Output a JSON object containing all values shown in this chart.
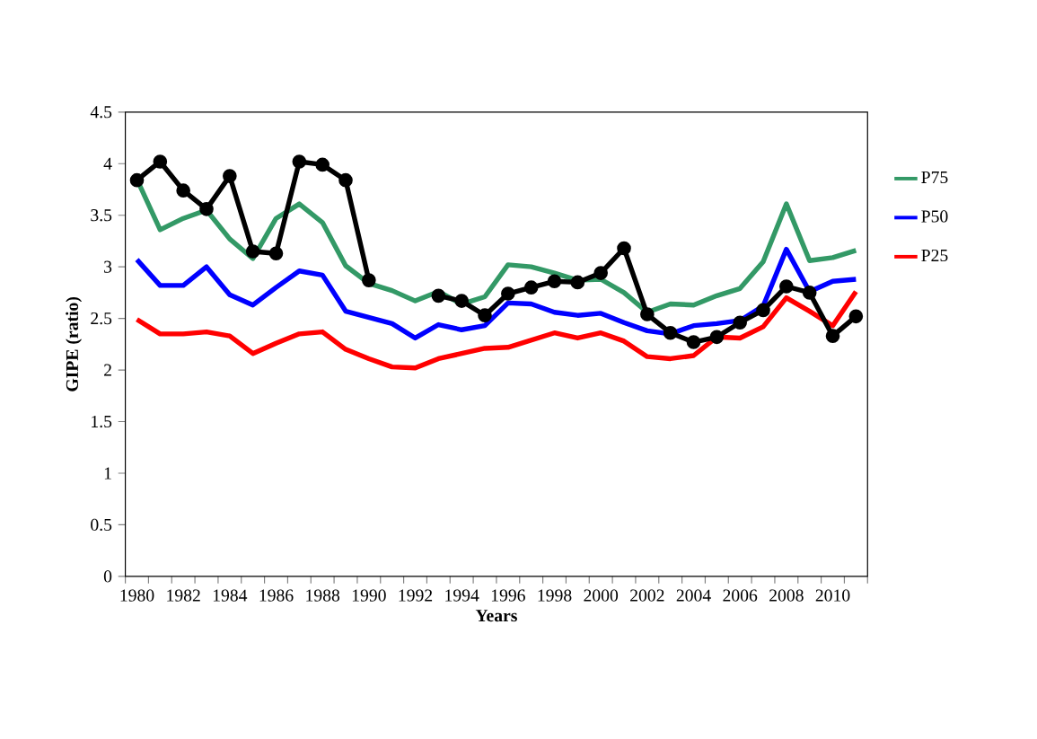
{
  "chart_data": {
    "type": "line",
    "xlabel": "Years",
    "ylabel": "GIPE (ratio)",
    "categories": [
      "1980",
      null,
      "1982",
      null,
      "1984",
      null,
      "1986",
      null,
      "1988",
      null,
      "1990",
      null,
      "1992",
      null,
      "1994",
      null,
      "1996",
      null,
      "1998",
      null,
      "2000",
      null,
      "2002",
      null,
      "2004",
      null,
      "2006",
      null,
      "2008",
      null,
      "2010",
      null
    ],
    "ylim": [
      0,
      4.5
    ],
    "yticks": [
      0,
      0.5,
      1,
      1.5,
      2,
      2.5,
      3,
      3.5,
      4,
      4.5
    ],
    "legend": "right",
    "marker": "none",
    "line_style": "solid",
    "series": [
      {
        "name": "P75",
        "color": "#339966",
        "values": [
          3.85,
          3.36,
          3.47,
          3.55,
          3.27,
          3.08,
          3.47,
          3.61,
          3.43,
          3.01,
          2.84,
          2.77,
          2.67,
          2.76,
          2.64,
          2.71,
          3.02,
          3.0,
          2.94,
          2.87,
          2.88,
          2.75,
          2.56,
          2.64,
          2.63,
          2.72,
          2.79,
          3.05,
          3.61,
          3.06,
          3.09,
          3.16
        ]
      },
      {
        "name": "P50",
        "color": "#0000ff",
        "values": [
          3.07,
          2.82,
          2.82,
          3.0,
          2.73,
          2.63,
          2.8,
          2.96,
          2.92,
          2.57,
          2.51,
          2.45,
          2.31,
          2.44,
          2.39,
          2.43,
          2.65,
          2.64,
          2.56,
          2.53,
          2.55,
          2.46,
          2.38,
          2.35,
          2.43,
          2.45,
          2.48,
          2.62,
          3.17,
          2.76,
          2.86,
          2.88
        ]
      },
      {
        "name": "P25",
        "color": "#ff0000",
        "values": [
          2.49,
          2.35,
          2.35,
          2.37,
          2.33,
          2.16,
          2.26,
          2.35,
          2.37,
          2.2,
          2.11,
          2.03,
          2.02,
          2.11,
          2.16,
          2.21,
          2.22,
          2.29,
          2.36,
          2.31,
          2.36,
          2.28,
          2.13,
          2.11,
          2.14,
          2.32,
          2.31,
          2.42,
          2.7,
          2.57,
          2.43,
          2.76
        ]
      },
      {
        "color": "#000000",
        "marker": "circle",
        "values": [
          3.84,
          4.02,
          3.74,
          3.56,
          3.88,
          3.15,
          3.13,
          4.02,
          3.99,
          3.84,
          2.87,
          null,
          null,
          2.72,
          2.67,
          2.53,
          2.74,
          2.8,
          2.86,
          2.85,
          2.94,
          3.18,
          2.54,
          2.36,
          2.27,
          2.32,
          2.46,
          2.58,
          2.81,
          2.75,
          2.33,
          2.52
        ]
      }
    ]
  }
}
